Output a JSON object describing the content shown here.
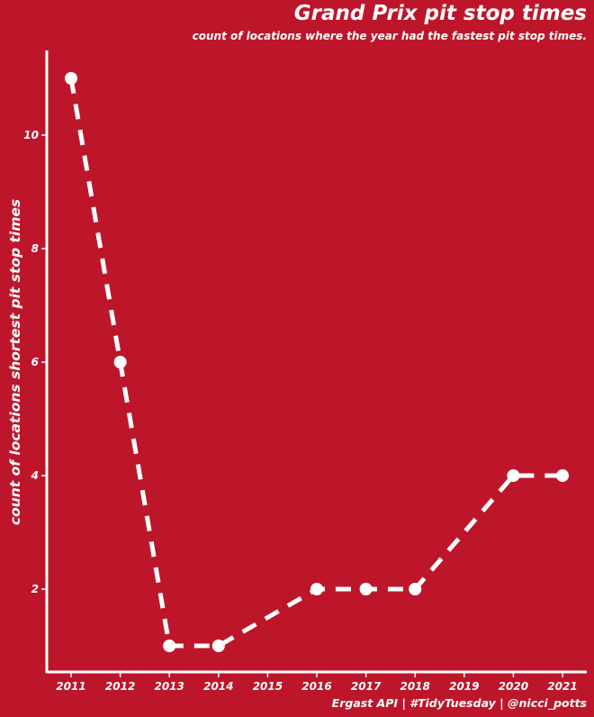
{
  "colors": {
    "background": "#bd162b",
    "foreground": "#ffffff"
  },
  "chart_data": {
    "type": "line",
    "title": "Grand Prix pit stop times",
    "subtitle": "count of locations where the year had the fastest pit stop times.",
    "caption": "Ergast API | #TidyTuesday |  @nicci_potts",
    "xlabel": "",
    "ylabel": "count of locations shortest pit stop times",
    "x": [
      2011,
      2012,
      2013,
      2014,
      2016,
      2017,
      2018,
      2020,
      2021
    ],
    "y": [
      11,
      6,
      1,
      1,
      2,
      2,
      2,
      4,
      4
    ],
    "x_ticks": [
      "2011",
      "2012",
      "2013",
      "2014",
      "2015",
      "2016",
      "2017",
      "2018",
      "2019",
      "2020",
      "2021"
    ],
    "y_ticks": [
      "2",
      "4",
      "6",
      "8",
      "10"
    ],
    "xlim": [
      2011,
      2021
    ],
    "ylim": [
      1,
      11
    ],
    "line_style": "dashed",
    "markers": true,
    "grid": false,
    "legend": "none"
  }
}
